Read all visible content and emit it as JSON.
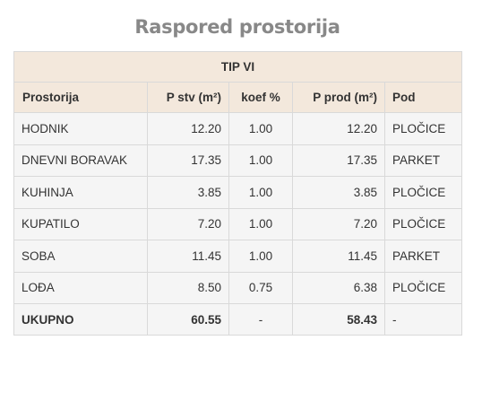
{
  "page": {
    "title": "Raspored prostorija"
  },
  "table": {
    "type_label": "TIP VI",
    "headers": {
      "name": "Prostorija",
      "p_stv": "P stv (m²)",
      "koef": "koef %",
      "p_prod": "P prod (m²)",
      "floor": "Pod"
    },
    "rows": [
      {
        "name": "HODNIK",
        "p_stv": "12.20",
        "koef": "1.00",
        "p_prod": "12.20",
        "floor": "PLOČICE"
      },
      {
        "name": "DNEVNI BORAVAK",
        "p_stv": "17.35",
        "koef": "1.00",
        "p_prod": "17.35",
        "floor": "PARKET"
      },
      {
        "name": "KUHINJA",
        "p_stv": "3.85",
        "koef": "1.00",
        "p_prod": "3.85",
        "floor": "PLOČICE"
      },
      {
        "name": "KUPATILO",
        "p_stv": "7.20",
        "koef": "1.00",
        "p_prod": "7.20",
        "floor": "PLOČICE"
      },
      {
        "name": "SOBA",
        "p_stv": "11.45",
        "koef": "1.00",
        "p_prod": "11.45",
        "floor": "PARKET"
      },
      {
        "name": "LOĐA",
        "p_stv": "8.50",
        "koef": "0.75",
        "p_prod": "6.38",
        "floor": "PLOČICE"
      }
    ],
    "total": {
      "name": "UKUPNO",
      "p_stv": "60.55",
      "koef": "-",
      "p_prod": "58.43",
      "floor": "-"
    }
  }
}
